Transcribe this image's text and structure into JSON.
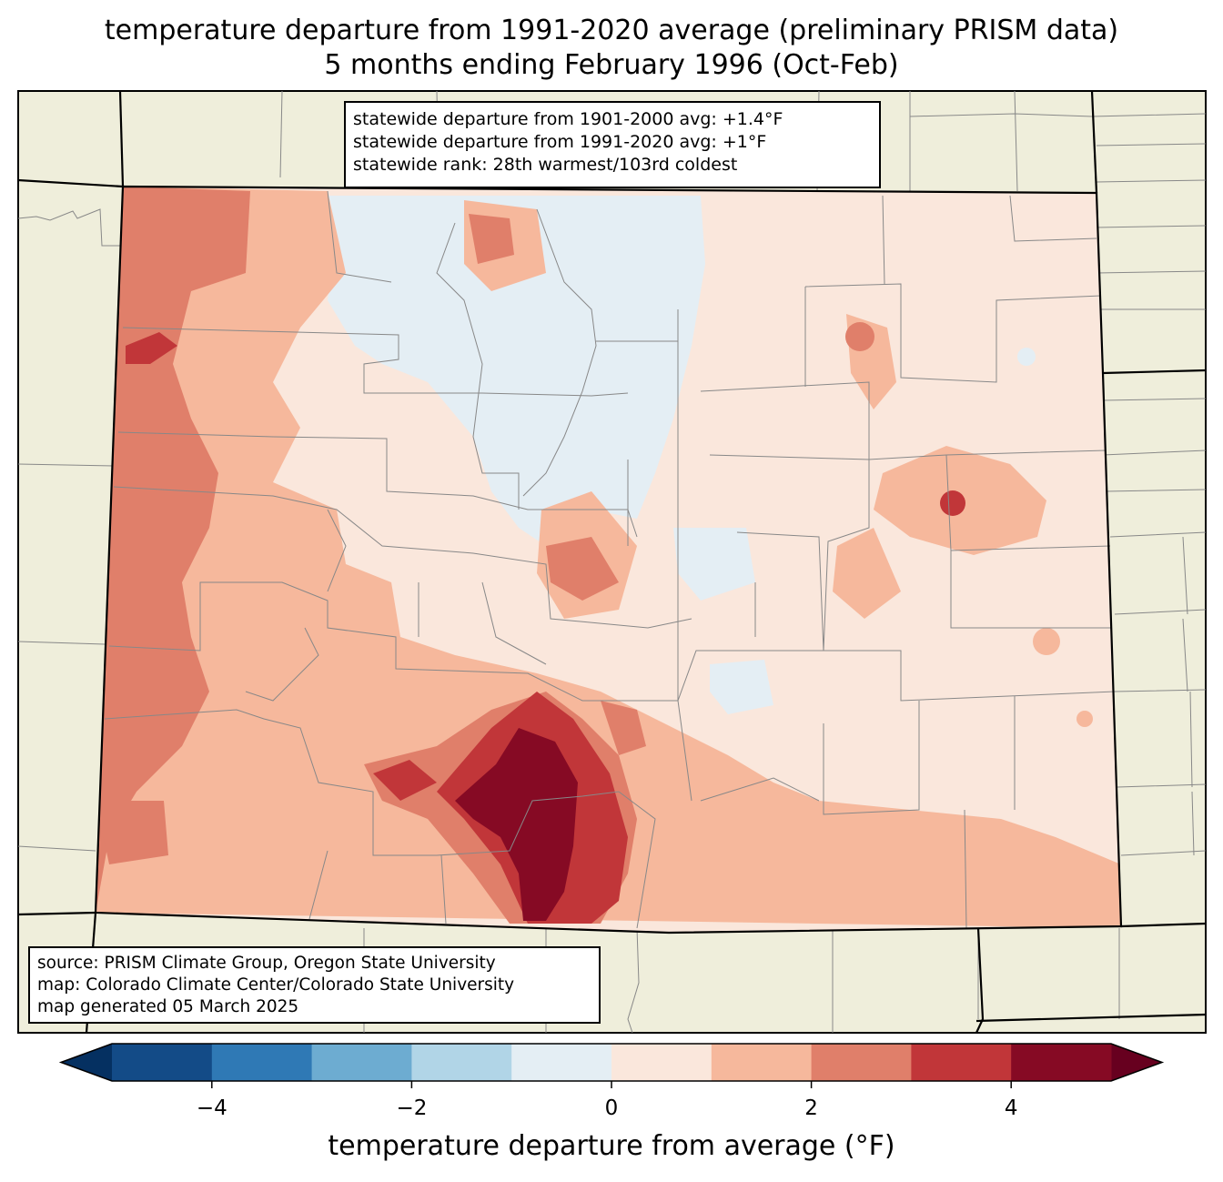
{
  "title_line1": "temperature departure from 1991-2020 average (preliminary PRISM data)",
  "title_line2": "5 months ending February 1996 (Oct-Feb)",
  "stats": {
    "line1": "statewide departure from 1901-2000 avg: +1.4°F",
    "line2": "statewide departure from 1991-2020 avg: +1°F",
    "line3": "statewide rank: 28th warmest/103rd coldest"
  },
  "source": {
    "line1": "source: PRISM Climate Group, Oregon State University",
    "line2": "map: Colorado Climate Center/Colorado State University",
    "line3": "map generated 05 March 2025"
  },
  "colorbar": {
    "label": "temperature departure from average (°F)",
    "ticks": [
      "−4",
      "−2",
      "0",
      "2",
      "4"
    ],
    "bins": [
      {
        "from": -5,
        "to": -4,
        "color": "#134b87"
      },
      {
        "from": -4,
        "to": -3,
        "color": "#2f79b5"
      },
      {
        "from": -3,
        "to": -2,
        "color": "#6dacd1"
      },
      {
        "from": -2,
        "to": -1,
        "color": "#b1d5e7"
      },
      {
        "from": -1,
        "to": 0,
        "color": "#e4eef4"
      },
      {
        "from": 0,
        "to": 1,
        "color": "#fae7dc"
      },
      {
        "from": 1,
        "to": 2,
        "color": "#f6b89c"
      },
      {
        "from": 2,
        "to": 3,
        "color": "#e07f6a"
      },
      {
        "from": 3,
        "to": 4,
        "color": "#c13639"
      },
      {
        "from": 4,
        "to": 5,
        "color": "#860a24"
      }
    ],
    "under_color": "#053061",
    "over_color": "#67001f"
  },
  "colors": {
    "land_outside": "#efeedb",
    "county_lines": "#888888",
    "state_lines": "#000000"
  }
}
